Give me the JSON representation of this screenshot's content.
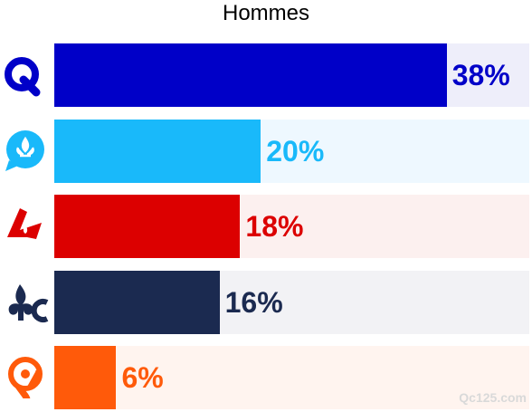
{
  "chart_data": {
    "type": "bar",
    "orientation": "horizontal",
    "title": "Hommes",
    "categories": [
      "CAQ",
      "PQ",
      "PLQ",
      "PCQ",
      "QS"
    ],
    "values": [
      38,
      20,
      18,
      16,
      6
    ],
    "labels": [
      "38%",
      "20%",
      "18%",
      "16%",
      "6%"
    ],
    "colors": [
      "#0000c8",
      "#19b9fa",
      "#dc0000",
      "#1b2a50",
      "#ff5a0a"
    ],
    "track_colors": [
      "#eeeefa",
      "#eef8ff",
      "#fcf0ef",
      "#f2f2f5",
      "#fff4ef"
    ],
    "icons": [
      "caq-logo-icon",
      "pq-logo-icon",
      "plq-logo-icon",
      "pcq-logo-icon",
      "qs-logo-icon"
    ],
    "xlim": [
      0,
      46
    ],
    "grid": false,
    "legend": "none"
  },
  "watermark": "Qc125.com"
}
